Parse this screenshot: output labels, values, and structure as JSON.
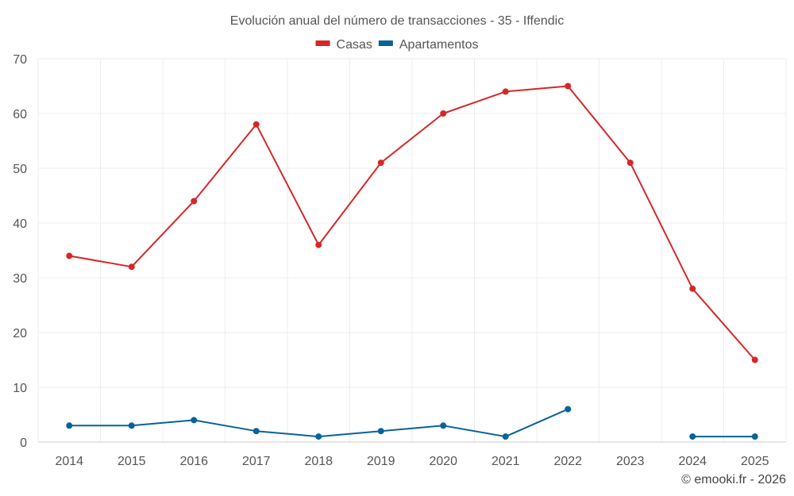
{
  "chart_data": {
    "type": "line",
    "title": "Evolución anual del número de transacciones - 35 - Iffendic",
    "categories": [
      "2014",
      "2015",
      "2016",
      "2017",
      "2018",
      "2019",
      "2020",
      "2021",
      "2022",
      "2023",
      "2024",
      "2025"
    ],
    "series": [
      {
        "name": "Casas",
        "color": "#d62728",
        "values": [
          34,
          32,
          44,
          58,
          36,
          51,
          60,
          64,
          65,
          51,
          28,
          15
        ]
      },
      {
        "name": "Apartamentos",
        "color": "#08629b",
        "values": [
          3,
          3,
          4,
          2,
          1,
          2,
          3,
          1,
          6,
          null,
          1,
          1
        ]
      }
    ],
    "ylim": [
      0,
      70
    ],
    "yticks": [
      0,
      10,
      20,
      30,
      40,
      50,
      60,
      70
    ],
    "grid": true,
    "legend_position": "top-center",
    "xlabel": "",
    "ylabel": ""
  },
  "credit": "© emooki.fr - 2026"
}
